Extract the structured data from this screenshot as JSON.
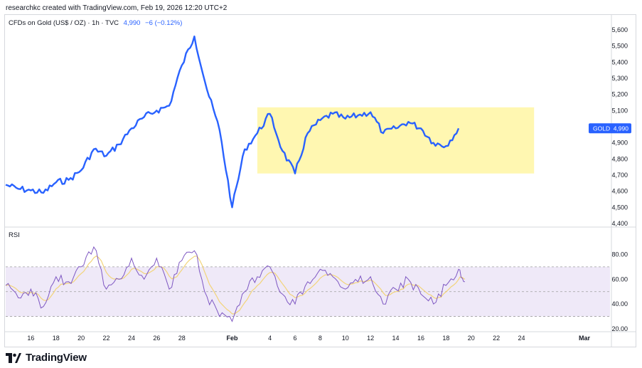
{
  "header": {
    "credit": "researchkc created with TradingView.com, Feb 19, 2026 12:20 UTC+2"
  },
  "legend": {
    "symbol": "CFDs on Gold (US$ / OZ) · 1h · TVC",
    "last": "4,990",
    "change": "−6 (−0.12%)"
  },
  "rsi_label": "RSI",
  "brand": {
    "name": "TradingView"
  },
  "colors": {
    "price": "#2962ff",
    "rsi": "#7e57c2",
    "rsi_ma": "#f2d479",
    "range_box": "#fff59d",
    "rsi_band": "#e8e0f5"
  },
  "chart_data": [
    {
      "type": "line",
      "title": "",
      "series": [
        {
          "name": "",
          "values": [
            {
              "x": "Jan 14",
              "y": 4640
            },
            {
              "x": "Jan 15",
              "y": 4615
            },
            {
              "x": "Jan 16",
              "y": 4605
            },
            {
              "x": "Jan 17",
              "y": 4590
            },
            {
              "x": "Jan 18",
              "y": 4655
            },
            {
              "x": "Jan 19",
              "y": 4670
            },
            {
              "x": "Jan 20",
              "y": 4730
            },
            {
              "x": "Jan 21",
              "y": 4860
            },
            {
              "x": "Jan 22",
              "y": 4820
            },
            {
              "x": "Jan 23",
              "y": 4890
            },
            {
              "x": "Jan 24",
              "y": 4990
            },
            {
              "x": "Jan 25",
              "y": 5060
            },
            {
              "x": "Jan 26",
              "y": 5100
            },
            {
              "x": "Jan 27",
              "y": 5130
            },
            {
              "x": "Jan 28",
              "y": 5380
            },
            {
              "x": "Jan 29",
              "y": 5560
            },
            {
              "x": "Jan 30",
              "y": 5230
            },
            {
              "x": "Jan 31",
              "y": 4980
            },
            {
              "x": "Feb 1",
              "y": 4500
            },
            {
              "x": "Feb 2",
              "y": 4860
            },
            {
              "x": "Feb 3",
              "y": 4960
            },
            {
              "x": "Feb 4",
              "y": 5080
            },
            {
              "x": "Feb 5",
              "y": 4850
            },
            {
              "x": "Feb 6",
              "y": 4710
            },
            {
              "x": "Feb 7",
              "y": 4960
            },
            {
              "x": "Feb 8",
              "y": 5040
            },
            {
              "x": "Feb 9",
              "y": 5080
            },
            {
              "x": "Feb 10",
              "y": 5050
            },
            {
              "x": "Feb 11",
              "y": 5070
            },
            {
              "x": "Feb 12",
              "y": 5090
            },
            {
              "x": "Feb 13",
              "y": 4960
            },
            {
              "x": "Feb 14",
              "y": 4990
            },
            {
              "x": "Feb 15",
              "y": 5030
            },
            {
              "x": "Feb 16",
              "y": 4990
            },
            {
              "x": "Feb 17",
              "y": 4900
            },
            {
              "x": "Feb 18",
              "y": 4880
            },
            {
              "x": "Feb 19",
              "y": 4990
            }
          ]
        }
      ],
      "annotations": {
        "range_box": {
          "x_start": "Feb 3",
          "x_end": "Feb 25",
          "y_low": 4710,
          "y_high": 5120
        },
        "price_tag": {
          "label": "GOLD",
          "value": "4,990"
        }
      },
      "x_tick_labels": [
        "16",
        "18",
        "20",
        "22",
        "24",
        "26",
        "28",
        "Feb",
        "4",
        "6",
        "8",
        "10",
        "12",
        "14",
        "16",
        "18",
        "20",
        "22",
        "24",
        "Mar"
      ],
      "y_tick_labels": [
        "5,600",
        "5,500",
        "5,400",
        "5,300",
        "5,200",
        "5,100",
        "5,000",
        "4,900",
        "4,800",
        "4,700",
        "4,600",
        "4,500",
        "4,400"
      ],
      "ylim": [
        4400,
        5600
      ],
      "y_scale": "linear",
      "grid": false
    },
    {
      "type": "line",
      "title": "RSI",
      "series": [
        {
          "name": "",
          "values": [
            {
              "x": "Jan 14",
              "y": 55
            },
            {
              "x": "Jan 15",
              "y": 45
            },
            {
              "x": "Jan 16",
              "y": 52
            },
            {
              "x": "Jan 17",
              "y": 38
            },
            {
              "x": "Jan 18",
              "y": 62
            },
            {
              "x": "Jan 19",
              "y": 58
            },
            {
              "x": "Jan 20",
              "y": 70
            },
            {
              "x": "Jan 21",
              "y": 86
            },
            {
              "x": "Jan 22",
              "y": 52
            },
            {
              "x": "Jan 23",
              "y": 60
            },
            {
              "x": "Jan 24",
              "y": 77
            },
            {
              "x": "Jan 25",
              "y": 60
            },
            {
              "x": "Jan 26",
              "y": 77
            },
            {
              "x": "Jan 27",
              "y": 52
            },
            {
              "x": "Jan 28",
              "y": 75
            },
            {
              "x": "Jan 29",
              "y": 83
            },
            {
              "x": "Jan 30",
              "y": 46
            },
            {
              "x": "Jan 31",
              "y": 30
            },
            {
              "x": "Feb 1",
              "y": 26
            },
            {
              "x": "Feb 2",
              "y": 50
            },
            {
              "x": "Feb 3",
              "y": 62
            },
            {
              "x": "Feb 4",
              "y": 70
            },
            {
              "x": "Feb 5",
              "y": 48
            },
            {
              "x": "Feb 6",
              "y": 40
            },
            {
              "x": "Feb 7",
              "y": 58
            },
            {
              "x": "Feb 8",
              "y": 68
            },
            {
              "x": "Feb 9",
              "y": 62
            },
            {
              "x": "Feb 10",
              "y": 52
            },
            {
              "x": "Feb 11",
              "y": 58
            },
            {
              "x": "Feb 12",
              "y": 62
            },
            {
              "x": "Feb 13",
              "y": 40
            },
            {
              "x": "Feb 14",
              "y": 52
            },
            {
              "x": "Feb 15",
              "y": 60
            },
            {
              "x": "Feb 16",
              "y": 48
            },
            {
              "x": "Feb 17",
              "y": 40
            },
            {
              "x": "Feb 18",
              "y": 55
            },
            {
              "x": "Feb 19",
              "y": 68
            },
            {
              "x": "Feb 19 12:00",
              "y": 58
            }
          ]
        }
      ],
      "bands": {
        "upper": 70,
        "middle": 50,
        "lower": 30
      },
      "y_tick_labels": [
        "80.00",
        "60.00",
        "40.00",
        "20.00"
      ],
      "ylim": [
        20,
        90
      ],
      "grid": false
    }
  ]
}
